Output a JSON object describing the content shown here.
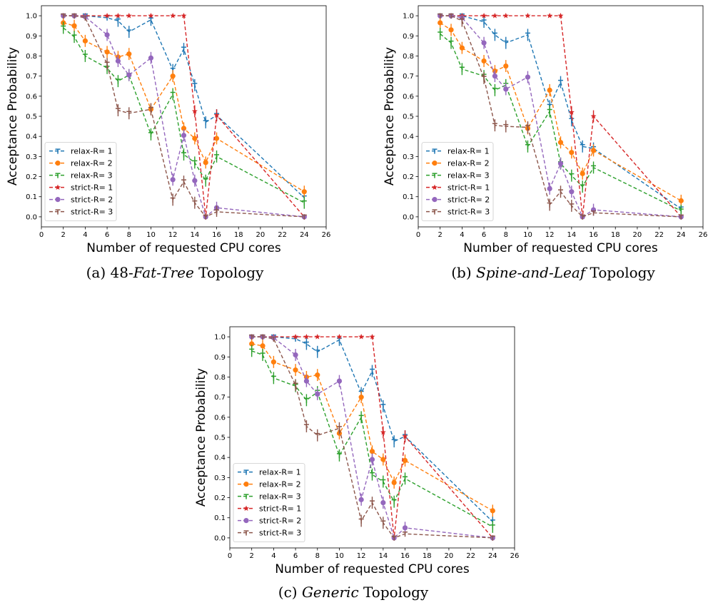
{
  "captions": [
    {
      "prefix": "(a) 48-",
      "italic": "Fat-Tree",
      "suffix": " Topology"
    },
    {
      "prefix": "(b) ",
      "italic": "Spine-and-Leaf",
      "suffix": " Topology"
    },
    {
      "prefix": "(c) ",
      "italic": "Generic",
      "suffix": " Topology"
    }
  ],
  "colors": {
    "relax-R= 1": "#1f77b4",
    "relax-R= 2": "#ff7f0e",
    "relax-R= 3": "#2ca02c",
    "strict-R= 1": "#d62728",
    "strict-R= 2": "#9467bd",
    "strict-R= 3": "#8c564b"
  },
  "chart_data": [
    {
      "type": "line",
      "xlabel": "Number of requested CPU cores",
      "ylabel": "Acceptance Probability",
      "xlim": [
        0,
        26
      ],
      "ylim": [
        -0.05,
        1.05
      ],
      "xticks": [
        0,
        2,
        4,
        6,
        8,
        10,
        12,
        14,
        16,
        18,
        20,
        22,
        24,
        26
      ],
      "yticks": [
        0.0,
        0.1,
        0.2,
        0.3,
        0.4,
        0.5,
        0.6,
        0.7,
        0.8,
        0.9,
        1.0
      ],
      "legend_position": "lower-left",
      "x": [
        2,
        3,
        4,
        6,
        7,
        8,
        10,
        12,
        13,
        14,
        15,
        16,
        24
      ],
      "series": [
        {
          "name": "relax-R= 1",
          "marker": "tri",
          "values": [
            1.0,
            1.0,
            1.0,
            0.99,
            0.975,
            0.92,
            0.98,
            0.73,
            0.835,
            0.655,
            0.47,
            0.505,
            0.095
          ]
        },
        {
          "name": "relax-R= 2",
          "marker": "circle",
          "values": [
            0.965,
            0.95,
            0.875,
            0.82,
            0.795,
            0.81,
            0.535,
            0.7,
            0.44,
            0.39,
            0.27,
            0.39,
            0.125
          ]
        },
        {
          "name": "relax-R= 3",
          "marker": "tri",
          "values": [
            0.94,
            0.895,
            0.8,
            0.74,
            0.675,
            0.705,
            0.41,
            0.61,
            0.31,
            0.27,
            0.18,
            0.3,
            0.07
          ]
        },
        {
          "name": "strict-R= 1",
          "marker": "star",
          "values": [
            1.0,
            1.0,
            1.0,
            1.0,
            1.0,
            1.0,
            1.0,
            1.0,
            1.0,
            0.525,
            0.0,
            0.505,
            0.0
          ]
        },
        {
          "name": "strict-R= 2",
          "marker": "circle",
          "values": [
            1.0,
            1.0,
            0.995,
            0.905,
            0.775,
            0.705,
            0.79,
            0.185,
            0.405,
            0.18,
            0.0,
            0.045,
            0.0
          ]
        },
        {
          "name": "strict-R= 3",
          "marker": "tri",
          "values": [
            1.0,
            1.0,
            0.99,
            0.76,
            0.53,
            0.515,
            0.535,
            0.085,
            0.175,
            0.07,
            0.0,
            0.025,
            0.0
          ]
        }
      ]
    },
    {
      "type": "line",
      "xlabel": "Number of requested CPU cores",
      "ylabel": "Acceptance Probability",
      "xlim": [
        0,
        26
      ],
      "ylim": [
        -0.05,
        1.05
      ],
      "xticks": [
        0,
        2,
        4,
        6,
        8,
        10,
        12,
        14,
        16,
        18,
        20,
        22,
        24,
        26
      ],
      "yticks": [
        0.0,
        0.1,
        0.2,
        0.3,
        0.4,
        0.5,
        0.6,
        0.7,
        0.8,
        0.9,
        1.0
      ],
      "legend_position": "lower-left",
      "x": [
        2,
        3,
        4,
        6,
        7,
        8,
        10,
        12,
        13,
        14,
        15,
        16,
        24
      ],
      "series": [
        {
          "name": "relax-R= 1",
          "marker": "tri",
          "values": [
            1.0,
            1.0,
            1.0,
            0.97,
            0.905,
            0.865,
            0.905,
            0.55,
            0.67,
            0.48,
            0.35,
            0.34,
            0.04
          ]
        },
        {
          "name": "relax-R= 2",
          "marker": "circle",
          "values": [
            0.965,
            0.93,
            0.84,
            0.775,
            0.725,
            0.75,
            0.44,
            0.63,
            0.37,
            0.32,
            0.215,
            0.33,
            0.08
          ]
        },
        {
          "name": "relax-R= 3",
          "marker": "tri",
          "values": [
            0.91,
            0.865,
            0.735,
            0.7,
            0.63,
            0.655,
            0.35,
            0.525,
            0.265,
            0.205,
            0.15,
            0.245,
            0.03
          ]
        },
        {
          "name": "strict-R= 1",
          "marker": "star",
          "values": [
            1.0,
            1.0,
            1.0,
            1.0,
            1.0,
            1.0,
            1.0,
            1.0,
            1.0,
            0.52,
            0.0,
            0.5,
            0.0
          ]
        },
        {
          "name": "strict-R= 2",
          "marker": "circle",
          "values": [
            1.0,
            1.0,
            0.99,
            0.865,
            0.7,
            0.635,
            0.695,
            0.14,
            0.265,
            0.125,
            0.0,
            0.035,
            0.0
          ]
        },
        {
          "name": "strict-R= 3",
          "marker": "tri",
          "values": [
            1.0,
            1.0,
            0.975,
            0.69,
            0.455,
            0.45,
            0.445,
            0.06,
            0.125,
            0.055,
            0.0,
            0.02,
            0.0
          ]
        }
      ]
    },
    {
      "type": "line",
      "xlabel": "Number of requested CPU cores",
      "ylabel": "Acceptance Probability",
      "xlim": [
        0,
        26
      ],
      "ylim": [
        -0.05,
        1.05
      ],
      "xticks": [
        0,
        2,
        4,
        6,
        8,
        10,
        12,
        14,
        16,
        18,
        20,
        22,
        24,
        26
      ],
      "yticks": [
        0.0,
        0.1,
        0.2,
        0.3,
        0.4,
        0.5,
        0.6,
        0.7,
        0.8,
        0.9,
        1.0
      ],
      "legend_position": "lower-left",
      "x": [
        2,
        3,
        4,
        6,
        7,
        8,
        10,
        12,
        13,
        14,
        15,
        16,
        24
      ],
      "series": [
        {
          "name": "relax-R= 1",
          "marker": "tri",
          "values": [
            1.0,
            1.0,
            1.0,
            0.99,
            0.965,
            0.925,
            0.985,
            0.72,
            0.83,
            0.655,
            0.48,
            0.505,
            0.08
          ]
        },
        {
          "name": "relax-R= 2",
          "marker": "circle",
          "values": [
            0.965,
            0.955,
            0.875,
            0.835,
            0.8,
            0.81,
            0.52,
            0.7,
            0.43,
            0.39,
            0.275,
            0.385,
            0.135
          ]
        },
        {
          "name": "relax-R= 3",
          "marker": "tri",
          "values": [
            0.93,
            0.91,
            0.795,
            0.755,
            0.685,
            0.725,
            0.41,
            0.6,
            0.315,
            0.28,
            0.18,
            0.295,
            0.055
          ]
        },
        {
          "name": "strict-R= 1",
          "marker": "star",
          "values": [
            1.0,
            1.0,
            1.0,
            1.0,
            1.0,
            1.0,
            1.0,
            1.0,
            1.0,
            0.525,
            0.0,
            0.505,
            0.0
          ]
        },
        {
          "name": "strict-R= 2",
          "marker": "circle",
          "values": [
            1.0,
            1.0,
            0.995,
            0.91,
            0.78,
            0.715,
            0.78,
            0.19,
            0.39,
            0.175,
            0.0,
            0.05,
            0.0
          ]
        },
        {
          "name": "strict-R= 3",
          "marker": "tri",
          "values": [
            1.0,
            1.0,
            0.99,
            0.76,
            0.555,
            0.51,
            0.545,
            0.085,
            0.175,
            0.075,
            0.0,
            0.02,
            0.0
          ]
        }
      ]
    }
  ]
}
